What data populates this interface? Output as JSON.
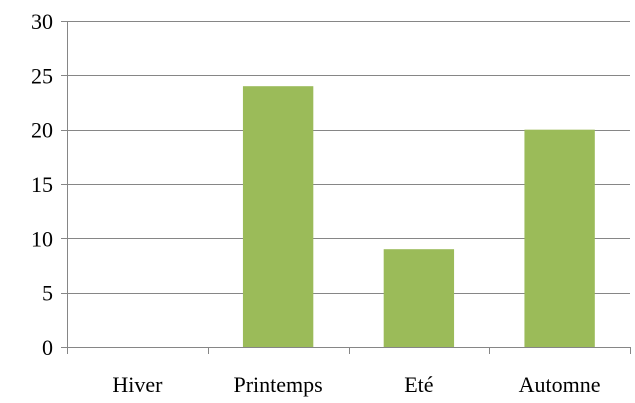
{
  "chart_data": {
    "type": "bar",
    "categories": [
      "Hiver",
      "Printemps",
      "Eté",
      "Automne"
    ],
    "values": [
      0,
      24,
      9,
      20
    ],
    "ylim": [
      0,
      30
    ],
    "yticks": [
      0,
      5,
      10,
      15,
      20,
      25,
      30
    ],
    "grid": true,
    "legend": "none",
    "colors": {
      "bar": "#9BBB59",
      "grid": "#868686",
      "axis": "#868686"
    }
  }
}
